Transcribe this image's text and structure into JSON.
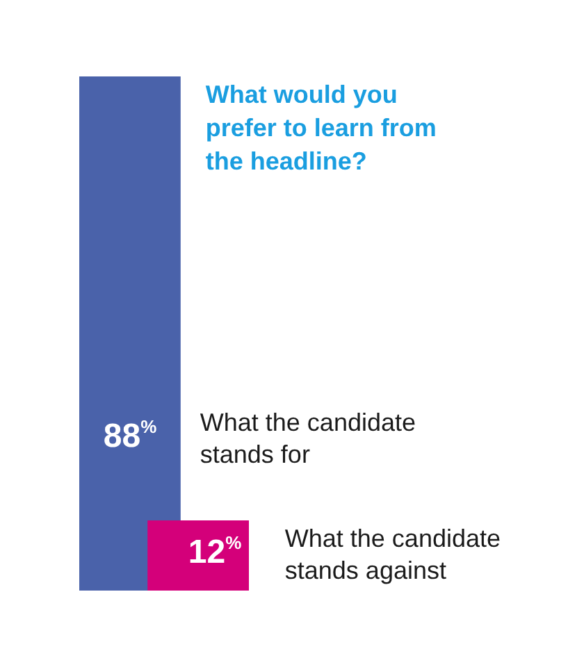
{
  "chart_data": {
    "type": "bar",
    "title": "What would you prefer to learn from the headline?",
    "categories": [
      null,
      null
    ],
    "annotations": [
      "What the candidate stands for",
      "What the candidate stands against"
    ],
    "values": [
      88,
      12
    ],
    "colors": [
      "#4a62aa",
      "#d4007a"
    ],
    "value_labels": [
      "88%",
      "12%"
    ],
    "legend": false
  }
}
